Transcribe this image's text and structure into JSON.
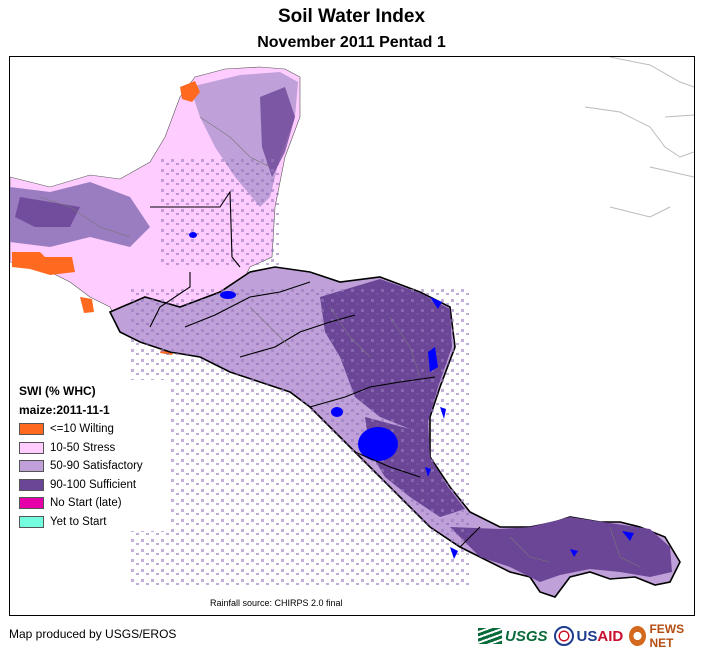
{
  "title": "Soil Water Index",
  "subtitle": "November 2011 Pentad 1",
  "legend": {
    "title": "SWI (% WHC)",
    "subtitle": "maize:2011-11-1",
    "items": [
      {
        "label": "<=10 Wilting",
        "color": "#ff6a20"
      },
      {
        "label": "10-50 Stress",
        "color": "#ffccff"
      },
      {
        "label": "50-90 Satisfactory",
        "color": "#bfa0d8"
      },
      {
        "label": "90-100 Sufficient",
        "color": "#6b4596"
      },
      {
        "label": "No Start (late)",
        "color": "#e600a9"
      },
      {
        "label": "Yet to Start",
        "color": "#73ffdf"
      }
    ]
  },
  "map": {
    "region": "Central America",
    "water_color": "#0000ff",
    "boundary_color": "#000000"
  },
  "rainfall_source": "Rainfall source: CHIRPS 2.0 final",
  "footer": {
    "credit": "Map produced by USGS/EROS",
    "logos": {
      "usgs": "USGS",
      "usaid_prefix": "US",
      "usaid_suffix": "AID",
      "fews": "FEWS NET"
    }
  }
}
